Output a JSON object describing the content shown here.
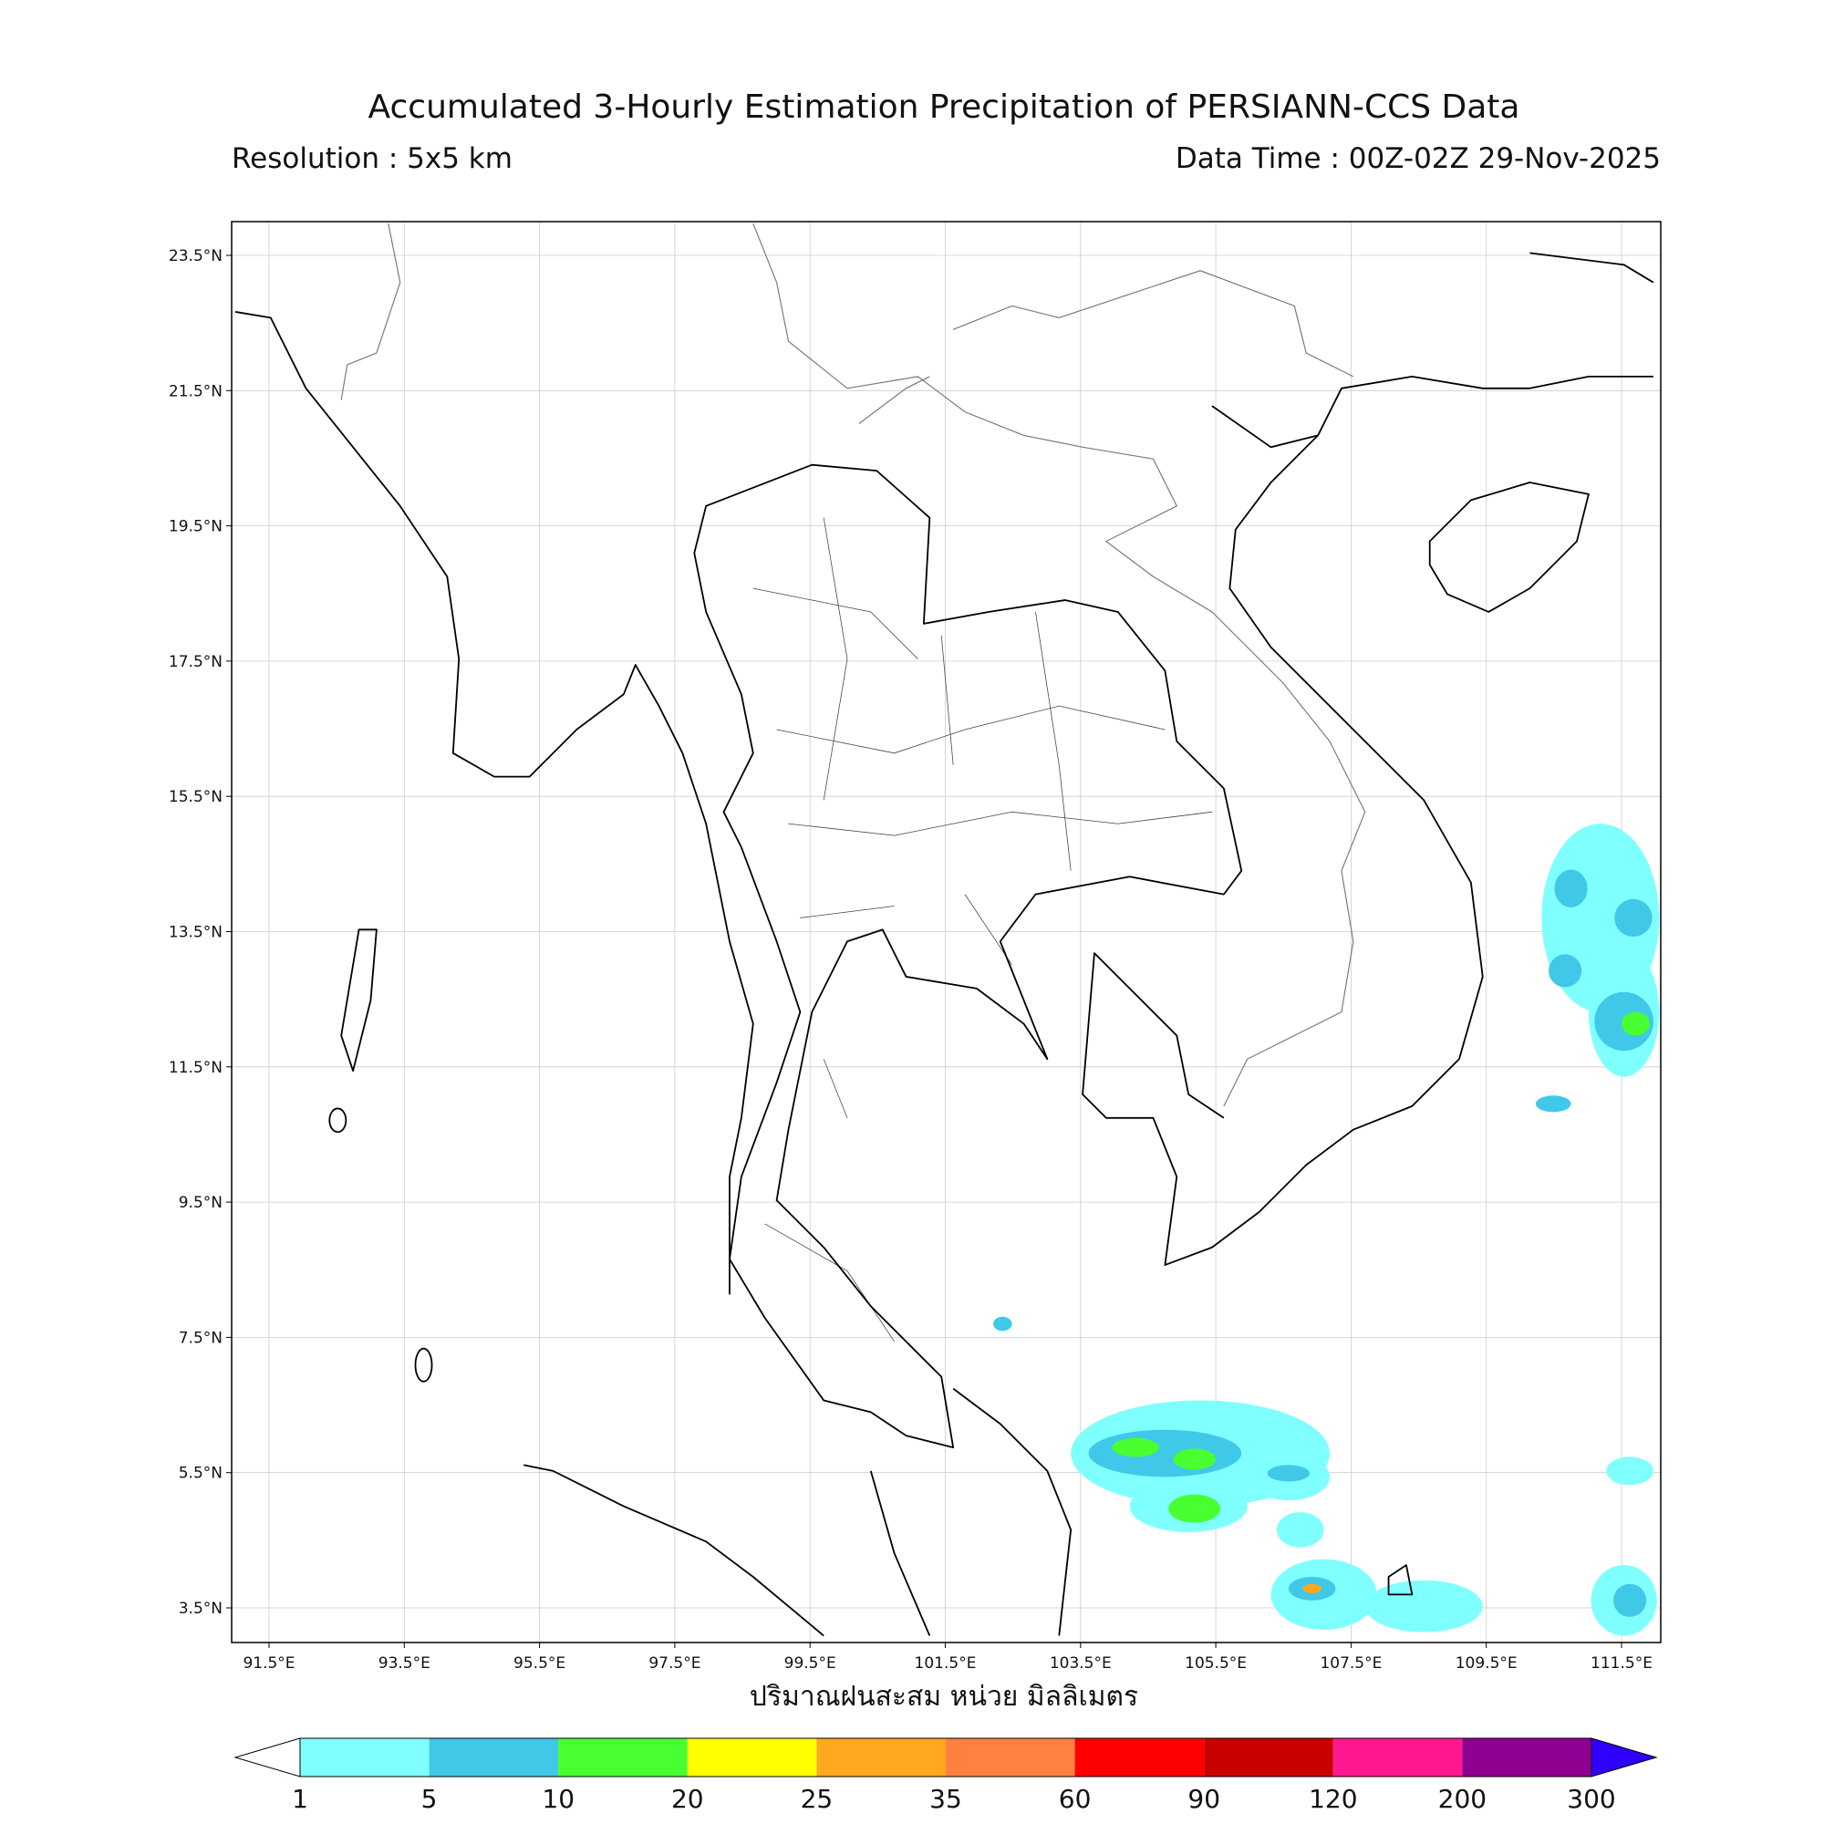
{
  "header": {
    "title": "Accumulated 3-Hourly Estimation Precipitation of PERSIANN-CCS Data",
    "resolution": "Resolution : 5x5 km",
    "data_time": "Data Time : 00Z-02Z 29-Nov-2025"
  },
  "map": {
    "lat_labels": [
      "23.5°N",
      "21.5°N",
      "19.5°N",
      "17.5°N",
      "15.5°N",
      "13.5°N",
      "11.5°N",
      "9.5°N",
      "7.5°N",
      "5.5°N",
      "3.5°N"
    ],
    "lon_labels": [
      "91.5°E",
      "93.5°E",
      "95.5°E",
      "97.5°E",
      "99.5°E",
      "101.5°E",
      "103.5°E",
      "105.5°E",
      "107.5°E",
      "109.5°E",
      "111.5°E"
    ],
    "xlabel": "ปริมาณฝนสะสม หน่วย มิลลิเมตร"
  },
  "colorbar": {
    "levels": [
      1,
      5,
      10,
      20,
      25,
      35,
      60,
      90,
      120,
      200,
      300
    ],
    "colors": [
      "#80ffff",
      "#40c8e8",
      "#48ff30",
      "#ffff00",
      "#ffa820",
      "#ff8040",
      "#ff0000",
      "#c80000",
      "#ff1890",
      "#900090"
    ],
    "under_color": "#ffffff",
    "over_color": "#3000ff"
  }
}
